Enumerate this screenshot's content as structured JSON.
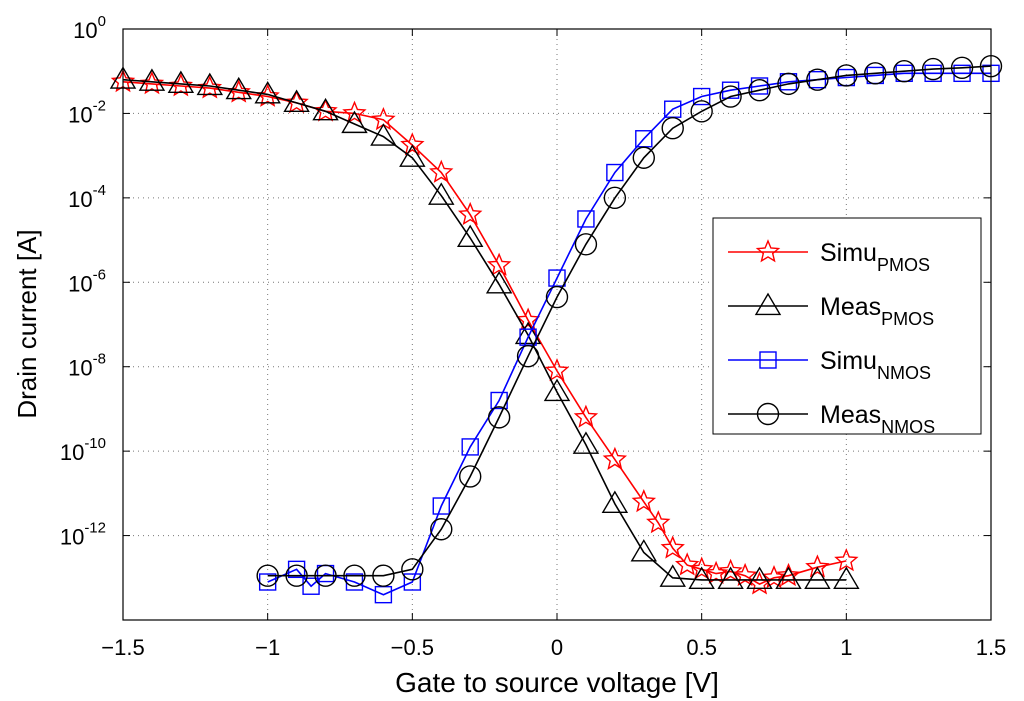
{
  "chart_data": {
    "type": "line",
    "xlabel": "Gate to source voltage [V]",
    "ylabel": "Drain current [A]",
    "xlim": [
      -1.5,
      1.5
    ],
    "ylim_log10": [
      -14,
      0
    ],
    "y_scale": "log",
    "grid": true,
    "legend_position": "right",
    "x_ticks": [
      "−1.5",
      "−1",
      "−0.5",
      "0",
      "0.5",
      "1",
      "1.5"
    ],
    "y_ticks": [
      {
        "base": "10",
        "exp": "0"
      },
      {
        "base": "10",
        "exp": "-2"
      },
      {
        "base": "10",
        "exp": "-4"
      },
      {
        "base": "10",
        "exp": "-6"
      },
      {
        "base": "10",
        "exp": "-8"
      },
      {
        "base": "10",
        "exp": "-10"
      },
      {
        "base": "10",
        "exp": "-12"
      }
    ],
    "series": [
      {
        "name": "Simu",
        "sub": "PMOS",
        "color": "#ff0000",
        "marker": "star",
        "x": [
          -1.5,
          -1.4,
          -1.3,
          -1.2,
          -1.1,
          -1.0,
          -0.9,
          -0.8,
          -0.7,
          -0.6,
          -0.5,
          -0.4,
          -0.3,
          -0.2,
          -0.1,
          0.0,
          0.1,
          0.2,
          0.3,
          0.35,
          0.4,
          0.45,
          0.5,
          0.55,
          0.6,
          0.65,
          0.7,
          0.75,
          0.8,
          0.9,
          1.0
        ],
        "log10y": [
          -1.25,
          -1.3,
          -1.35,
          -1.4,
          -1.5,
          -1.6,
          -1.75,
          -1.95,
          -2.0,
          -2.15,
          -2.75,
          -3.4,
          -4.4,
          -5.6,
          -6.9,
          -8.1,
          -9.2,
          -10.2,
          -11.2,
          -11.7,
          -12.3,
          -12.7,
          -12.8,
          -12.9,
          -12.85,
          -12.95,
          -13.15,
          -13.0,
          -12.95,
          -12.75,
          -12.6
        ]
      },
      {
        "name": "Meas",
        "sub": "PMOS",
        "color": "#000000",
        "marker": "triangle",
        "x": [
          -1.5,
          -1.4,
          -1.3,
          -1.2,
          -1.1,
          -1.0,
          -0.9,
          -0.8,
          -0.7,
          -0.6,
          -0.5,
          -0.4,
          -0.3,
          -0.2,
          -0.1,
          0.0,
          0.1,
          0.2,
          0.3,
          0.4,
          0.5,
          0.6,
          0.7,
          0.8,
          0.9,
          1.0
        ],
        "log10y": [
          -1.2,
          -1.25,
          -1.3,
          -1.35,
          -1.45,
          -1.55,
          -1.75,
          -1.95,
          -2.25,
          -2.55,
          -3.05,
          -3.95,
          -4.95,
          -6.05,
          -7.25,
          -8.6,
          -9.85,
          -11.25,
          -12.4,
          -13.0,
          -13.05,
          -13.05,
          -13.05,
          -13.05,
          -13.05,
          -13.05
        ]
      },
      {
        "name": "Simu",
        "sub": "NMOS",
        "color": "#0000ff",
        "marker": "square",
        "x": [
          -1.0,
          -0.9,
          -0.85,
          -0.8,
          -0.7,
          -0.6,
          -0.5,
          -0.4,
          -0.3,
          -0.2,
          -0.1,
          0.0,
          0.1,
          0.2,
          0.3,
          0.4,
          0.5,
          0.6,
          0.7,
          0.8,
          0.9,
          1.0,
          1.1,
          1.2,
          1.3,
          1.4,
          1.5
        ],
        "log10y": [
          -13.1,
          -12.8,
          -13.2,
          -12.9,
          -13.1,
          -13.4,
          -13.1,
          -11.3,
          -9.9,
          -8.8,
          -7.3,
          -5.9,
          -4.5,
          -3.4,
          -2.6,
          -1.9,
          -1.6,
          -1.45,
          -1.35,
          -1.25,
          -1.2,
          -1.15,
          -1.1,
          -1.05,
          -1.05,
          -1.05,
          -1.05
        ]
      },
      {
        "name": "Meas",
        "sub": "NMOS",
        "color": "#000000",
        "marker": "circle",
        "x": [
          -1.0,
          -0.9,
          -0.8,
          -0.7,
          -0.6,
          -0.5,
          -0.4,
          -0.3,
          -0.2,
          -0.1,
          0.0,
          0.1,
          0.2,
          0.3,
          0.4,
          0.5,
          0.6,
          0.7,
          0.8,
          0.9,
          1.0,
          1.1,
          1.2,
          1.3,
          1.4,
          1.5
        ],
        "log10y": [
          -12.95,
          -12.95,
          -12.95,
          -12.95,
          -12.95,
          -12.8,
          -11.85,
          -10.6,
          -9.2,
          -7.75,
          -6.35,
          -5.1,
          -4.0,
          -3.05,
          -2.35,
          -1.95,
          -1.6,
          -1.45,
          -1.3,
          -1.2,
          -1.1,
          -1.05,
          -1.0,
          -0.95,
          -0.92,
          -0.88
        ]
      }
    ]
  }
}
